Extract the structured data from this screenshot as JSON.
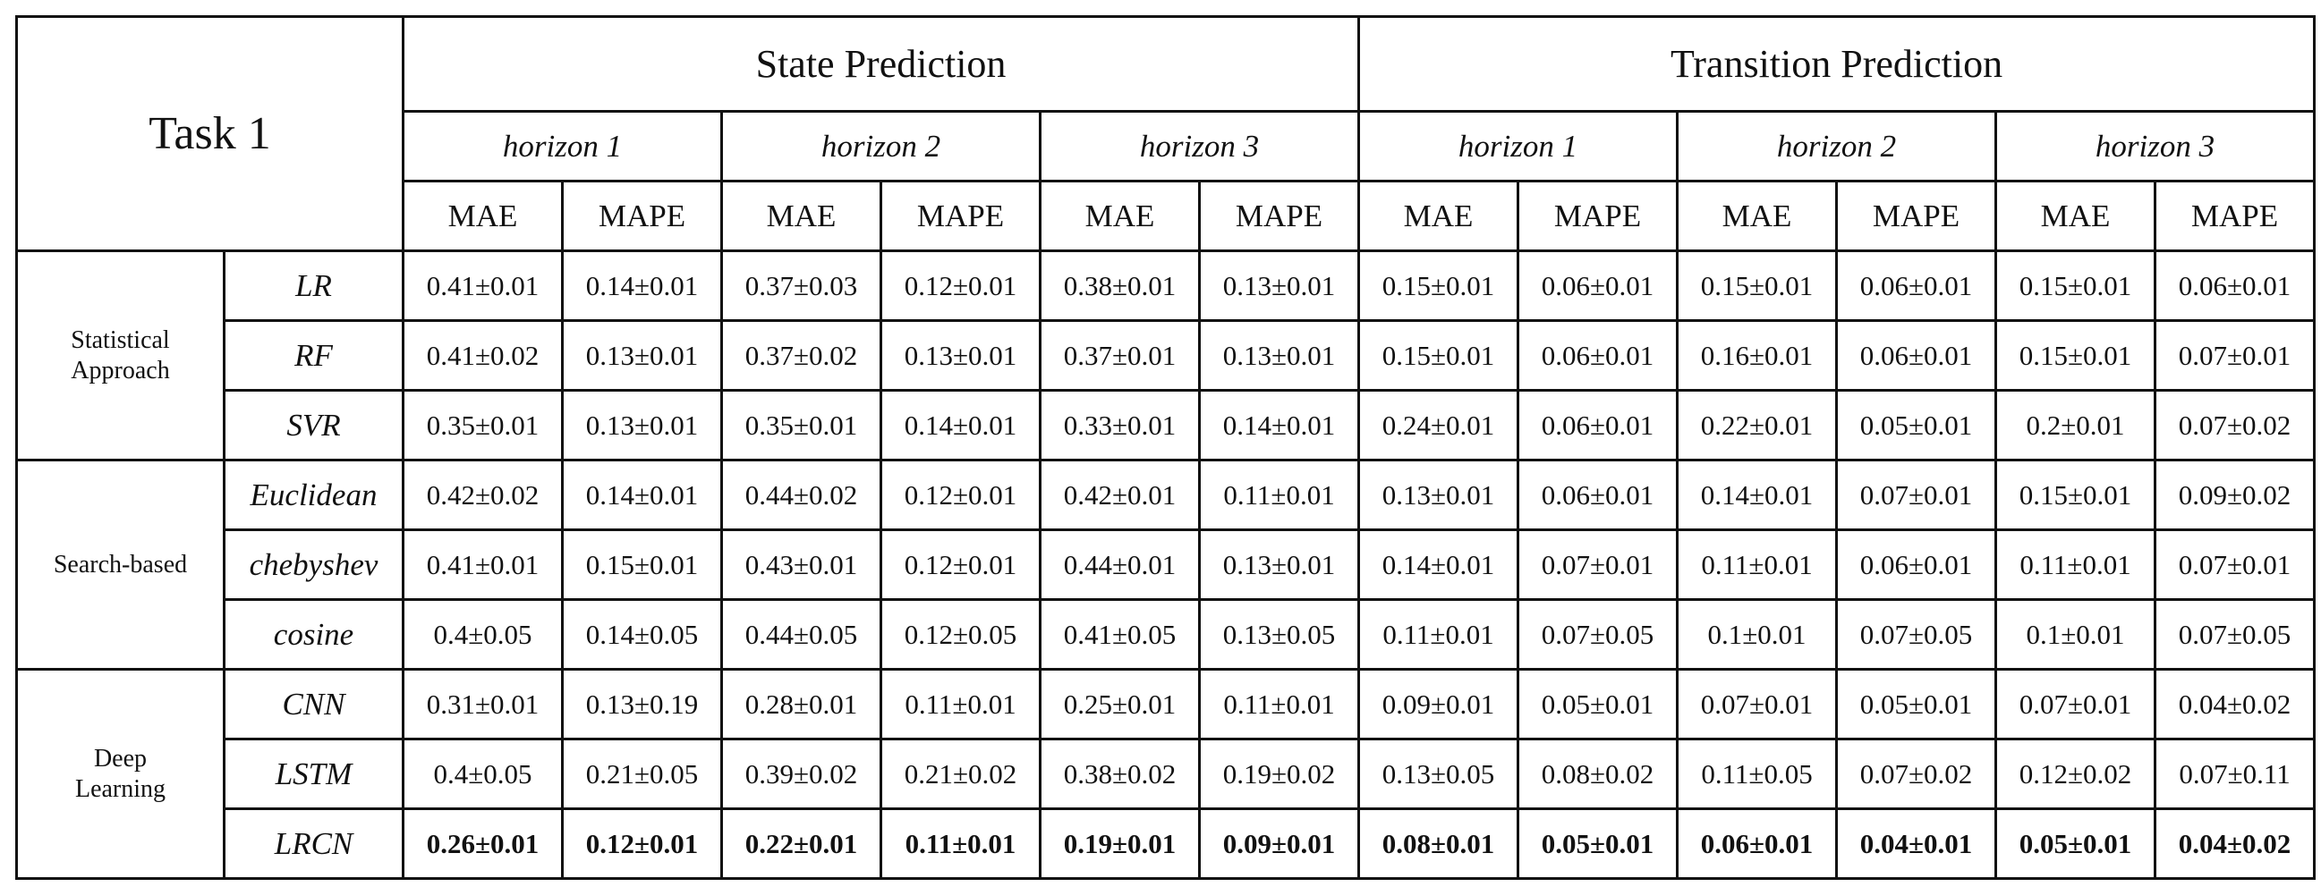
{
  "table": {
    "task_label": "Task 1",
    "groups": [
      "State Prediction",
      "Transition Prediction"
    ],
    "horizons": [
      "horizon 1",
      "horizon 2",
      "horizon 3",
      "horizon 1",
      "horizon 2",
      "horizon 3"
    ],
    "metrics": [
      "MAE",
      "MAPE",
      "MAE",
      "MAPE",
      "MAE",
      "MAPE",
      "MAE",
      "MAPE",
      "MAE",
      "MAPE",
      "MAE",
      "MAPE"
    ],
    "categories": [
      {
        "label": "Statistical\nApproach",
        "rows": [
          {
            "method": "LR",
            "values": [
              "0.41±0.01",
              "0.14±0.01",
              "0.37±0.03",
              "0.12±0.01",
              "0.38±0.01",
              "0.13±0.01",
              "0.15±0.01",
              "0.06±0.01",
              "0.15±0.01",
              "0.06±0.01",
              "0.15±0.01",
              "0.06±0.01"
            ]
          },
          {
            "method": "RF",
            "values": [
              "0.41±0.02",
              "0.13±0.01",
              "0.37±0.02",
              "0.13±0.01",
              "0.37±0.01",
              "0.13±0.01",
              "0.15±0.01",
              "0.06±0.01",
              "0.16±0.01",
              "0.06±0.01",
              "0.15±0.01",
              "0.07±0.01"
            ]
          },
          {
            "method": "SVR",
            "values": [
              "0.35±0.01",
              "0.13±0.01",
              "0.35±0.01",
              "0.14±0.01",
              "0.33±0.01",
              "0.14±0.01",
              "0.24±0.01",
              "0.06±0.01",
              "0.22±0.01",
              "0.05±0.01",
              "0.2±0.01",
              "0.07±0.02"
            ]
          }
        ]
      },
      {
        "label": "Search-based",
        "rows": [
          {
            "method": "Euclidean",
            "values": [
              "0.42±0.02",
              "0.14±0.01",
              "0.44±0.02",
              "0.12±0.01",
              "0.42±0.01",
              "0.11±0.01",
              "0.13±0.01",
              "0.06±0.01",
              "0.14±0.01",
              "0.07±0.01",
              "0.15±0.01",
              "0.09±0.02"
            ]
          },
          {
            "method": "chebyshev",
            "values": [
              "0.41±0.01",
              "0.15±0.01",
              "0.43±0.01",
              "0.12±0.01",
              "0.44±0.01",
              "0.13±0.01",
              "0.14±0.01",
              "0.07±0.01",
              "0.11±0.01",
              "0.06±0.01",
              "0.11±0.01",
              "0.07±0.01"
            ]
          },
          {
            "method": "cosine",
            "values": [
              "0.4±0.05",
              "0.14±0.05",
              "0.44±0.05",
              "0.12±0.05",
              "0.41±0.05",
              "0.13±0.05",
              "0.11±0.01",
              "0.07±0.05",
              "0.1±0.01",
              "0.07±0.05",
              "0.1±0.01",
              "0.07±0.05"
            ]
          }
        ]
      },
      {
        "label": "Deep\nLearning",
        "rows": [
          {
            "method": "CNN",
            "values": [
              "0.31±0.01",
              "0.13±0.19",
              "0.28±0.01",
              "0.11±0.01",
              "0.25±0.01",
              "0.11±0.01",
              "0.09±0.01",
              "0.05±0.01",
              "0.07±0.01",
              "0.05±0.01",
              "0.07±0.01",
              "0.04±0.02"
            ]
          },
          {
            "method": "LSTM",
            "values": [
              "0.4±0.05",
              "0.21±0.05",
              "0.39±0.02",
              "0.21±0.02",
              "0.38±0.02",
              "0.19±0.02",
              "0.13±0.05",
              "0.08±0.02",
              "0.11±0.05",
              "0.07±0.02",
              "0.12±0.02",
              "0.07±0.11"
            ]
          },
          {
            "method": "LRCN",
            "values": [
              "0.26±0.01",
              "0.12±0.01",
              "0.22±0.01",
              "0.11±0.01",
              "0.19±0.01",
              "0.09±0.01",
              "0.08±0.01",
              "0.05±0.01",
              "0.06±0.01",
              "0.04±0.01",
              "0.05±0.01",
              "0.04±0.02"
            ]
          }
        ]
      }
    ]
  }
}
